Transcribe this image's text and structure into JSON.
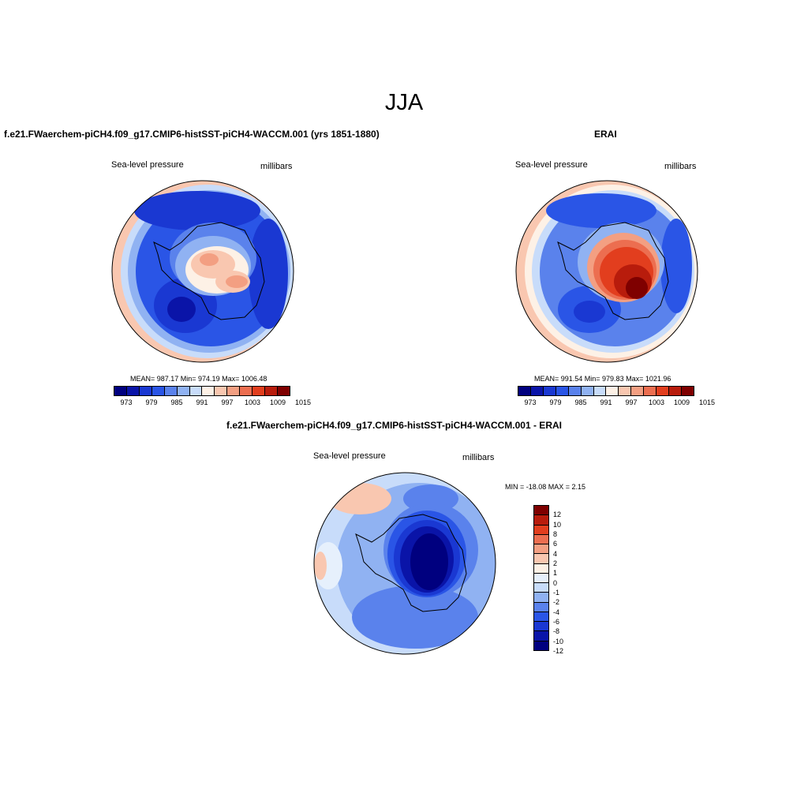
{
  "main_title": "JJA",
  "panels": [
    {
      "title": "f.e21.FWaerchem-piCH4.f09_g17.CMIP6-histSST-piCH4-WACCM.001 (yrs 1851-1880)",
      "left_label": "Sea-level pressure",
      "right_label": "millibars",
      "stats": "MEAN= 987.17   Min= 974.19   Max= 1006.48"
    },
    {
      "title": "ERAI",
      "left_label": "Sea-level pressure",
      "right_label": "millibars",
      "stats": "MEAN= 991.54   Min= 979.83   Max= 1021.96"
    },
    {
      "title": "f.e21.FWaerchem-piCH4.f09_g17.CMIP6-histSST-piCH4-WACCM.001 - ERAI",
      "left_label": "Sea-level pressure",
      "right_label": "millibars",
      "stats": "MIN = -18.08 MAX =   2.15"
    }
  ],
  "abs_colorbar": {
    "colors": [
      "#00007f",
      "#0a14a8",
      "#1a38d2",
      "#2a55e6",
      "#5a82ec",
      "#90b2f2",
      "#c8dcfa",
      "#fdf1e6",
      "#f9c7b0",
      "#f39f82",
      "#ec6e50",
      "#e23e1e",
      "#b81c0c",
      "#7f0000"
    ],
    "ticks": [
      "973",
      "979",
      "985",
      "991",
      "997",
      "1003",
      "1009",
      "1015"
    ]
  },
  "diff_colorbar": {
    "colors": [
      "#7f0000",
      "#b81c0c",
      "#e23e1e",
      "#ec6e50",
      "#f39f82",
      "#f9c7b0",
      "#fdf1e6",
      "#e6f0fc",
      "#c8dcfa",
      "#90b2f2",
      "#5a82ec",
      "#2a55e6",
      "#1a38d2",
      "#0a14a8",
      "#00007f"
    ],
    "ticks": [
      "12",
      "10",
      "8",
      "6",
      "4",
      "2",
      "1",
      "0",
      "-1",
      "-2",
      "-4",
      "-6",
      "-8",
      "-10",
      "-12"
    ]
  },
  "colors": {
    "ocean_blue": "#2a55e6",
    "land_blue": "#1a38d2",
    "high_red": "#e23e1e"
  }
}
